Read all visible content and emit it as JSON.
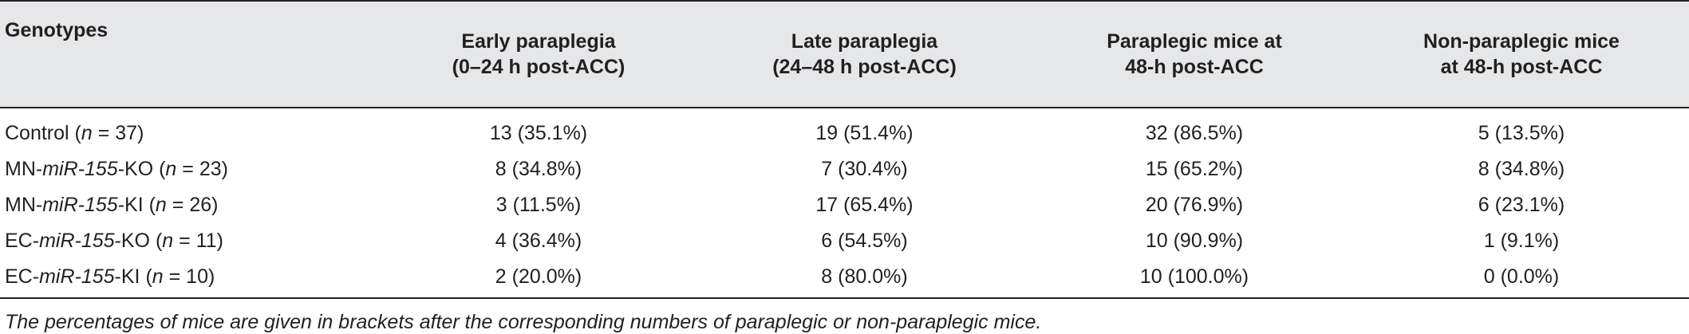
{
  "table": {
    "headers": [
      {
        "line1": "Genotypes",
        "line2": ""
      },
      {
        "line1": "Early paraplegia",
        "line2": "(0–24 h post-ACC)"
      },
      {
        "line1": "Late paraplegia",
        "line2": "(24–48 h post-ACC)"
      },
      {
        "line1": "Paraplegic mice at",
        "line2": "48-h post-ACC"
      },
      {
        "line1": "Non-paraplegic mice",
        "line2": "at 48-h post-ACC"
      }
    ],
    "rows": [
      {
        "genotype_prefix": "Control (",
        "genotype_italic": "",
        "genotype_suffix": "",
        "n_label": "n",
        "n_value": " = 37)",
        "early": "13 (35.1%)",
        "late": "19 (51.4%)",
        "paraplegic": "32 (86.5%)",
        "non_paraplegic": "5 (13.5%)"
      },
      {
        "genotype_prefix": "MN-",
        "genotype_italic": "miR-155",
        "genotype_suffix": "-KO (",
        "n_label": "n",
        "n_value": " = 23)",
        "early": "8 (34.8%)",
        "late": "7 (30.4%)",
        "paraplegic": "15 (65.2%)",
        "non_paraplegic": "8 (34.8%)"
      },
      {
        "genotype_prefix": "MN-",
        "genotype_italic": "miR-155",
        "genotype_suffix": "-KI (",
        "n_label": "n",
        "n_value": " = 26)",
        "early": "3 (11.5%)",
        "late": "17 (65.4%)",
        "paraplegic": "20 (76.9%)",
        "non_paraplegic": "6 (23.1%)"
      },
      {
        "genotype_prefix": "EC-",
        "genotype_italic": "miR-155",
        "genotype_suffix": "-KO (",
        "n_label": "n",
        "n_value": " = 11)",
        "early": "4 (36.4%)",
        "late": "6 (54.5%)",
        "paraplegic": "10 (90.9%)",
        "non_paraplegic": "1 (9.1%)"
      },
      {
        "genotype_prefix": "EC-",
        "genotype_italic": "miR-155",
        "genotype_suffix": "-KI (",
        "n_label": "n",
        "n_value": " = 10)",
        "early": "2 (20.0%)",
        "late": "8 (80.0%)",
        "paraplegic": "10 (100.0%)",
        "non_paraplegic": "0 (0.0%)"
      }
    ],
    "footnote": "The percentages of mice are given in brackets after the corresponding numbers of paraplegic or non-paraplegic mice."
  },
  "colors": {
    "header_background": "#e6e7e8",
    "text": "#231f20",
    "rule": "#231f20"
  }
}
